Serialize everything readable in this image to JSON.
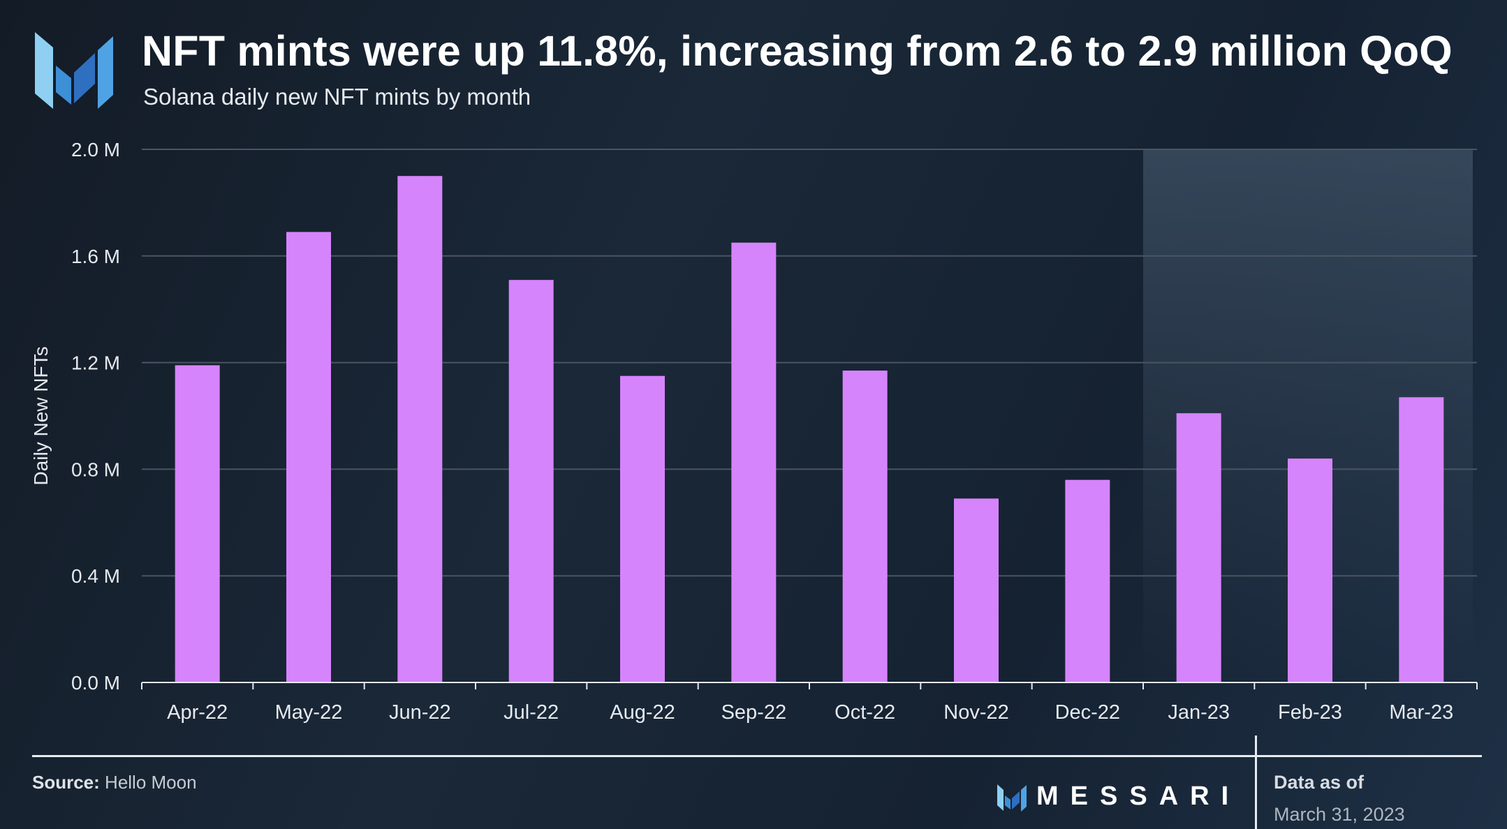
{
  "header": {
    "title": "NFT mints were up 11.8%, increasing from 2.6 to 2.9 million QoQ",
    "subtitle": "Solana daily new NFT mints by month"
  },
  "footer": {
    "source_label": "Source:",
    "source_value": "Hello Moon",
    "brand": "MESSARI",
    "data_as_of_label": "Data as of",
    "data_as_of_date": "March 31, 2023"
  },
  "colors": {
    "bar": "#d684fb",
    "grid": "#4a5563",
    "axis": "#e6e9ee",
    "highlight": "#3b4c60"
  },
  "chart_data": {
    "type": "bar",
    "title": "NFT mints were up 11.8%, increasing from 2.6 to 2.9 million QoQ",
    "subtitle": "Solana daily new NFT mints by month",
    "xlabel": "",
    "ylabel": "Daily New NFTs",
    "ylim": [
      0,
      2.0
    ],
    "yticks": [
      0.0,
      0.4,
      0.8,
      1.2,
      1.6,
      2.0
    ],
    "ytick_labels": [
      "0.0 M",
      "0.4 M",
      "0.8 M",
      "1.2 M",
      "1.6 M",
      "2.0 M"
    ],
    "categories": [
      "Apr-22",
      "May-22",
      "Jun-22",
      "Jul-22",
      "Aug-22",
      "Sep-22",
      "Oct-22",
      "Nov-22",
      "Dec-22",
      "Jan-23",
      "Feb-23",
      "Mar-23"
    ],
    "values": [
      1.19,
      1.69,
      1.9,
      1.51,
      1.15,
      1.65,
      1.17,
      0.69,
      0.76,
      1.01,
      0.84,
      1.07
    ],
    "unit": "M",
    "highlighted_categories": [
      "Jan-23",
      "Feb-23",
      "Mar-23"
    ],
    "grid": true,
    "legend": "none"
  }
}
